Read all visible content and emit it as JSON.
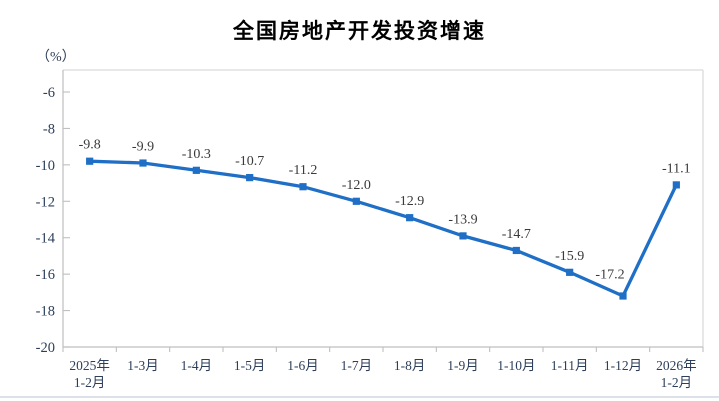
{
  "page": {
    "bottom_divider": true
  },
  "chart_data": {
    "type": "line",
    "title": "全国房地产开发投资增速",
    "unit": "（%）",
    "categories": [
      "2025年\n1-2月",
      "1-3月",
      "1-4月",
      "1-5月",
      "1-6月",
      "1-7月",
      "1-8月",
      "1-9月",
      "1-10月",
      "1-11月",
      "1-12月",
      "2026年\n1-2月"
    ],
    "values": [
      -9.8,
      -9.9,
      -10.3,
      -10.7,
      -11.2,
      -12.0,
      -12.9,
      -13.9,
      -14.7,
      -15.9,
      -17.2,
      -11.1
    ],
    "data_labels": [
      "-9.8",
      "-9.9",
      "-10.3",
      "-10.7",
      "-11.2",
      "-12.0",
      "-12.9",
      "-13.9",
      "-14.7",
      "-15.9",
      "-17.2",
      "-11.1"
    ],
    "y_ticks": [
      -6,
      -8,
      -10,
      -12,
      -14,
      -16,
      -18,
      -20
    ],
    "ylim": [
      -20,
      -4.8
    ],
    "grid": false,
    "legend": null,
    "marker": "square",
    "colors": {
      "series": "#1F6FC6",
      "axis_line": "#BFBFBF",
      "plot_border": "#D9D9D9",
      "data_label": "#3a3a3a",
      "tick_label": "#2c3e5a"
    }
  }
}
